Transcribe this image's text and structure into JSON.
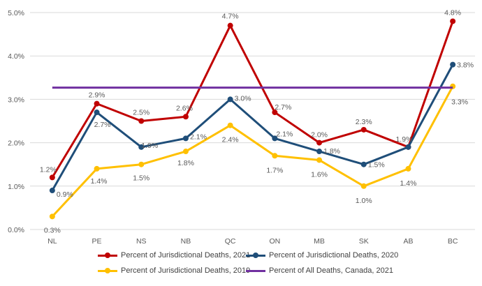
{
  "chart_data": {
    "type": "line",
    "title": "",
    "xlabel": "",
    "ylabel": "",
    "categories": [
      "NL",
      "PE",
      "NS",
      "NB",
      "QC",
      "ON",
      "MB",
      "SK",
      "AB",
      "BC"
    ],
    "ylim": [
      0,
      5
    ],
    "yticks": [
      "0.0%",
      "1.0%",
      "2.0%",
      "3.0%",
      "4.0%",
      "5.0%"
    ],
    "grid": true,
    "legend_position": "bottom",
    "series": [
      {
        "name": "Percent of Jurisdictional Deaths, 2021",
        "color": "#C00000",
        "markers": true,
        "values": [
          1.2,
          2.9,
          2.5,
          2.6,
          4.7,
          2.7,
          2.0,
          2.3,
          1.9,
          4.8
        ],
        "labels": [
          "1.2%",
          "2.9%",
          "2.5%",
          "2.6%",
          "4.7%",
          "2.7%",
          "2.0%",
          "2.3%",
          "1.9%",
          "4.8%"
        ]
      },
      {
        "name": "Percent of Jurisdictional Deaths, 2020",
        "color": "#1F4E79",
        "markers": true,
        "values": [
          0.9,
          2.7,
          1.9,
          2.1,
          3.0,
          2.1,
          1.8,
          1.5,
          1.9,
          3.8
        ],
        "labels": [
          "0.9%",
          "2.7%",
          "1.9%",
          "2.1%",
          "3.0%",
          "2.1%",
          "1.8%",
          "1.5%",
          "1.9%",
          "3.8%"
        ]
      },
      {
        "name": "Percent of Jurisdictional Deaths, 2019",
        "color": "#FFC000",
        "markers": true,
        "values": [
          0.3,
          1.4,
          1.5,
          1.8,
          2.4,
          1.7,
          1.6,
          1.0,
          1.4,
          3.3
        ],
        "labels": [
          "0.3%",
          "1.4%",
          "1.5%",
          "1.8%",
          "2.4%",
          "1.7%",
          "1.6%",
          "1.0%",
          "1.4%",
          "3.3%"
        ]
      },
      {
        "name": "Percent of All Deaths, Canada, 2021",
        "color": "#7030A0",
        "markers": false,
        "values": [
          3.27,
          3.27,
          3.27,
          3.27,
          3.27,
          3.27,
          3.27,
          3.27,
          3.27,
          3.27
        ],
        "labels": []
      }
    ]
  }
}
